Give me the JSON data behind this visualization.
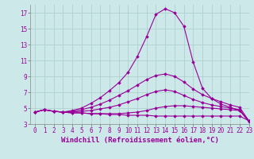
{
  "xlabel": "Windchill (Refroidissement éolien,°C)",
  "x": [
    0,
    1,
    2,
    3,
    4,
    5,
    6,
    7,
    8,
    9,
    10,
    11,
    12,
    13,
    14,
    15,
    16,
    17,
    18,
    19,
    20,
    21,
    22,
    23
  ],
  "series": [
    [
      4.5,
      4.8,
      4.6,
      4.5,
      4.4,
      4.4,
      4.3,
      4.3,
      4.2,
      4.2,
      4.1,
      4.1,
      4.1,
      4.0,
      4.0,
      4.0,
      4.0,
      4.0,
      4.0,
      4.0,
      4.0,
      4.0,
      4.0,
      3.4
    ],
    [
      4.5,
      4.8,
      4.6,
      4.5,
      4.4,
      4.4,
      4.3,
      4.3,
      4.3,
      4.3,
      4.4,
      4.5,
      4.7,
      5.0,
      5.2,
      5.3,
      5.3,
      5.2,
      5.1,
      5.0,
      4.9,
      4.8,
      4.7,
      3.4
    ],
    [
      4.5,
      4.8,
      4.6,
      4.5,
      4.5,
      4.6,
      4.7,
      4.9,
      5.1,
      5.4,
      5.8,
      6.2,
      6.7,
      7.1,
      7.3,
      7.1,
      6.6,
      6.1,
      5.7,
      5.4,
      5.2,
      5.0,
      4.8,
      3.4
    ],
    [
      4.5,
      4.8,
      4.6,
      4.5,
      4.6,
      4.8,
      5.1,
      5.5,
      6.0,
      6.6,
      7.2,
      7.9,
      8.6,
      9.1,
      9.3,
      9.0,
      8.3,
      7.4,
      6.7,
      6.2,
      5.8,
      5.4,
      5.1,
      3.4
    ],
    [
      4.5,
      4.8,
      4.6,
      4.5,
      4.7,
      5.0,
      5.6,
      6.3,
      7.2,
      8.2,
      9.5,
      11.5,
      14.0,
      16.8,
      17.5,
      17.0,
      15.3,
      10.8,
      7.5,
      6.2,
      5.5,
      5.1,
      4.7,
      3.3
    ]
  ],
  "line_color": "#990099",
  "bg_color": "#cce8e8",
  "grid_color": "#aacccc",
  "ylim": [
    3,
    18
  ],
  "xlim": [
    -0.5,
    23
  ],
  "yticks": [
    3,
    5,
    7,
    9,
    11,
    13,
    15,
    17
  ],
  "xticks": [
    0,
    1,
    2,
    3,
    4,
    5,
    6,
    7,
    8,
    9,
    10,
    11,
    12,
    13,
    14,
    15,
    16,
    17,
    18,
    19,
    20,
    21,
    22,
    23
  ],
  "tick_fontsize": 5.5,
  "xlabel_fontsize": 6.5,
  "marker": "D",
  "markersize": 1.8,
  "linewidth": 0.8
}
